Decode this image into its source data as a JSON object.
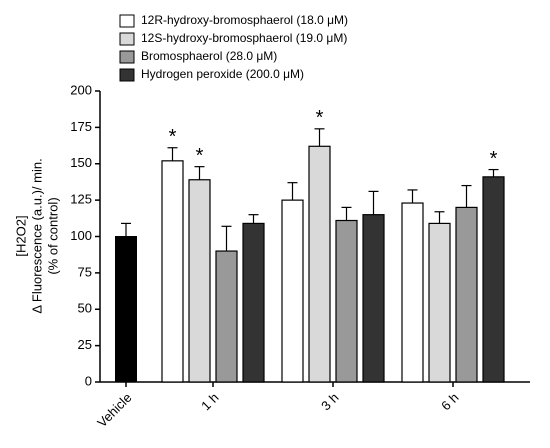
{
  "chart_data": {
    "type": "bar",
    "categories": [
      "Vehicle",
      "1 h",
      "3 h",
      "6 h"
    ],
    "ylabel": [
      "[H2O2]",
      "Δ Fluorescence (a.u.)/ min.",
      "(% of control)"
    ],
    "ylim": [
      0,
      200
    ],
    "yticks": [
      0,
      25,
      50,
      75,
      100,
      125,
      150,
      175,
      200
    ],
    "vehicle": {
      "color": "#000000",
      "value": 100,
      "error": 9
    },
    "series": [
      {
        "name": "12R-hydroxy-bromosphaerol (18.0 μM)",
        "color": "#ffffff",
        "values": [
          null,
          152,
          125,
          123
        ],
        "errors": [
          null,
          9,
          12,
          9
        ],
        "significance": [
          null,
          "*",
          null,
          null
        ]
      },
      {
        "name": "12S-hydroxy-bromosphaerol (19.0 μM)",
        "color": "#d9d9d9",
        "values": [
          null,
          139,
          162,
          109
        ],
        "errors": [
          null,
          9,
          12,
          8
        ],
        "significance": [
          null,
          "*",
          "*",
          null
        ]
      },
      {
        "name": "Bromosphaerol (28.0 μM)",
        "color": "#999999",
        "values": [
          null,
          90,
          111,
          120
        ],
        "errors": [
          null,
          17,
          9,
          15
        ],
        "significance": [
          null,
          null,
          null,
          null
        ]
      },
      {
        "name": "Hydrogen peroxide (200.0 μM)",
        "color": "#333333",
        "values": [
          null,
          109,
          115,
          141
        ],
        "errors": [
          null,
          6,
          16,
          5
        ],
        "significance": [
          null,
          null,
          null,
          "*"
        ]
      }
    ]
  }
}
